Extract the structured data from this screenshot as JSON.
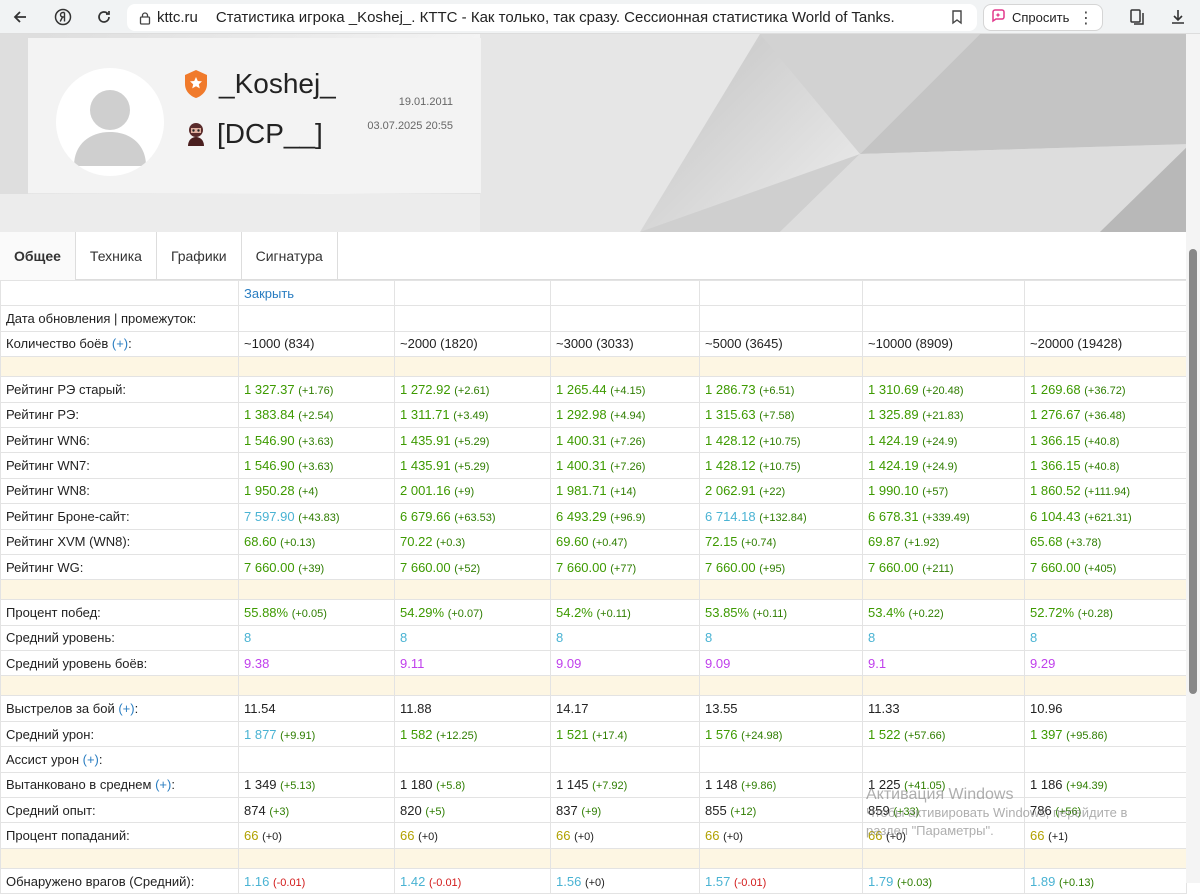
{
  "browser": {
    "domain": "kttc.ru",
    "title": "Статистика игрока _Koshej_. КТТС - Как только, так сразу. Сессионная статистика World of Tanks.",
    "ask_label": "Спросить"
  },
  "profile": {
    "nickname": "_Koshej_",
    "clan": "[DCP__]",
    "date_registered": "19.01.2011",
    "date_updated": "03.07.2025 20:55"
  },
  "tabs": [
    "Общее",
    "Техника",
    "Графики",
    "Сигнатура"
  ],
  "table": {
    "close_label": "Закрыть",
    "update_label": "Дата обновления | промежуток:",
    "battles_label": "Количество боёв",
    "plus": "(+)",
    "battles": [
      "~1000 (834)",
      "~2000 (1820)",
      "~3000 (3033)",
      "~5000 (3645)",
      "~10000 (8909)",
      "~20000 (19428)"
    ],
    "groups": [
      [
        {
          "label": "Рейтинг РЭ старый:",
          "cells": [
            [
              "1 327.37",
              "(+1.76)",
              "g",
              "dg"
            ],
            [
              "1 272.92",
              "(+2.61)",
              "g",
              "dg"
            ],
            [
              "1 265.44",
              "(+4.15)",
              "g",
              "dg"
            ],
            [
              "1 286.73",
              "(+6.51)",
              "g",
              "dg"
            ],
            [
              "1 310.69",
              "(+20.48)",
              "g",
              "dg"
            ],
            [
              "1 269.68",
              "(+36.72)",
              "g",
              "dg"
            ]
          ]
        },
        {
          "label": "Рейтинг РЭ:",
          "cells": [
            [
              "1 383.84",
              "(+2.54)",
              "g",
              "dg"
            ],
            [
              "1 311.71",
              "(+3.49)",
              "g",
              "dg"
            ],
            [
              "1 292.98",
              "(+4.94)",
              "g",
              "dg"
            ],
            [
              "1 315.63",
              "(+7.58)",
              "g",
              "dg"
            ],
            [
              "1 325.89",
              "(+21.83)",
              "g",
              "dg"
            ],
            [
              "1 276.67",
              "(+36.48)",
              "g",
              "dg"
            ]
          ]
        },
        {
          "label": "Рейтинг WN6:",
          "cells": [
            [
              "1 546.90",
              "(+3.63)",
              "g",
              "dg"
            ],
            [
              "1 435.91",
              "(+5.29)",
              "g",
              "dg"
            ],
            [
              "1 400.31",
              "(+7.26)",
              "g",
              "dg"
            ],
            [
              "1 428.12",
              "(+10.75)",
              "g",
              "dg"
            ],
            [
              "1 424.19",
              "(+24.9)",
              "g",
              "dg"
            ],
            [
              "1 366.15",
              "(+40.8)",
              "g",
              "dg"
            ]
          ]
        },
        {
          "label": "Рейтинг WN7:",
          "cells": [
            [
              "1 546.90",
              "(+3.63)",
              "g",
              "dg"
            ],
            [
              "1 435.91",
              "(+5.29)",
              "g",
              "dg"
            ],
            [
              "1 400.31",
              "(+7.26)",
              "g",
              "dg"
            ],
            [
              "1 428.12",
              "(+10.75)",
              "g",
              "dg"
            ],
            [
              "1 424.19",
              "(+24.9)",
              "g",
              "dg"
            ],
            [
              "1 366.15",
              "(+40.8)",
              "g",
              "dg"
            ]
          ]
        },
        {
          "label": "Рейтинг WN8:",
          "cells": [
            [
              "1 950.28",
              "(+4)",
              "g",
              "dg"
            ],
            [
              "2 001.16",
              "(+9)",
              "g",
              "dg"
            ],
            [
              "1 981.71",
              "(+14)",
              "g",
              "dg"
            ],
            [
              "2 062.91",
              "(+22)",
              "g",
              "dg"
            ],
            [
              "1 990.10",
              "(+57)",
              "g",
              "dg"
            ],
            [
              "1 860.52",
              "(+111.94)",
              "g",
              "dg"
            ]
          ]
        },
        {
          "label": "Рейтинг Броне-сайт:",
          "cells": [
            [
              "7 597.90",
              "(+43.83)",
              "b",
              "dg"
            ],
            [
              "6 679.66",
              "(+63.53)",
              "g",
              "dg"
            ],
            [
              "6 493.29",
              "(+96.9)",
              "g",
              "dg"
            ],
            [
              "6 714.18",
              "(+132.84)",
              "b",
              "dg"
            ],
            [
              "6 678.31",
              "(+339.49)",
              "g",
              "dg"
            ],
            [
              "6 104.43",
              "(+621.31)",
              "g",
              "dg"
            ]
          ]
        },
        {
          "label": "Рейтинг XVM (WN8):",
          "cells": [
            [
              "68.60",
              "(+0.13)",
              "g",
              "dg"
            ],
            [
              "70.22",
              "(+0.3)",
              "g",
              "dg"
            ],
            [
              "69.60",
              "(+0.47)",
              "g",
              "dg"
            ],
            [
              "72.15",
              "(+0.74)",
              "g",
              "dg"
            ],
            [
              "69.87",
              "(+1.92)",
              "g",
              "dg"
            ],
            [
              "65.68",
              "(+3.78)",
              "g",
              "dg"
            ]
          ]
        },
        {
          "label": "Рейтинг WG:",
          "cells": [
            [
              "7 660.00",
              "(+39)",
              "g",
              "dg"
            ],
            [
              "7 660.00",
              "(+52)",
              "g",
              "dg"
            ],
            [
              "7 660.00",
              "(+77)",
              "g",
              "dg"
            ],
            [
              "7 660.00",
              "(+95)",
              "g",
              "dg"
            ],
            [
              "7 660.00",
              "(+211)",
              "g",
              "dg"
            ],
            [
              "7 660.00",
              "(+405)",
              "g",
              "dg"
            ]
          ]
        }
      ],
      [
        {
          "label": "Процент побед:",
          "cells": [
            [
              "55.88%",
              "(+0.05)",
              "g",
              "dg"
            ],
            [
              "54.29%",
              "(+0.07)",
              "g",
              "dg"
            ],
            [
              "54.2%",
              "(+0.11)",
              "g",
              "dg"
            ],
            [
              "53.85%",
              "(+0.11)",
              "g",
              "dg"
            ],
            [
              "53.4%",
              "(+0.22)",
              "g",
              "dg"
            ],
            [
              "52.72%",
              "(+0.28)",
              "g",
              "dg"
            ]
          ]
        },
        {
          "label": "Средний уровень:",
          "cells": [
            [
              "8",
              "",
              "b",
              ""
            ],
            [
              "8",
              "",
              "b",
              ""
            ],
            [
              "8",
              "",
              "b",
              ""
            ],
            [
              "8",
              "",
              "b",
              ""
            ],
            [
              "8",
              "",
              "b",
              ""
            ],
            [
              "8",
              "",
              "b",
              ""
            ]
          ]
        },
        {
          "label": "Средний уровень боёв:",
          "cells": [
            [
              "9.38",
              "",
              "p",
              ""
            ],
            [
              "9.11",
              "",
              "p",
              ""
            ],
            [
              "9.09",
              "",
              "p",
              ""
            ],
            [
              "9.09",
              "",
              "p",
              ""
            ],
            [
              "9.1",
              "",
              "p",
              ""
            ],
            [
              "9.29",
              "",
              "p",
              ""
            ]
          ]
        }
      ],
      [
        {
          "label": "Выстрелов за бой",
          "plus": true,
          "cells": [
            [
              "11.54",
              "",
              "v",
              ""
            ],
            [
              "11.88",
              "",
              "v",
              ""
            ],
            [
              "14.17",
              "",
              "v",
              ""
            ],
            [
              "13.55",
              "",
              "v",
              ""
            ],
            [
              "11.33",
              "",
              "v",
              ""
            ],
            [
              "10.96",
              "",
              "v",
              ""
            ]
          ]
        },
        {
          "label": "Средний урон:",
          "cells": [
            [
              "1 877",
              "(+9.91)",
              "b",
              "dg"
            ],
            [
              "1 582",
              "(+12.25)",
              "g",
              "dg"
            ],
            [
              "1 521",
              "(+17.4)",
              "g",
              "dg"
            ],
            [
              "1 576",
              "(+24.98)",
              "g",
              "dg"
            ],
            [
              "1 522",
              "(+57.66)",
              "g",
              "dg"
            ],
            [
              "1 397",
              "(+95.86)",
              "g",
              "dg"
            ]
          ]
        },
        {
          "label": "Ассист урон",
          "plus": true,
          "cells": [
            [
              "",
              "",
              "v",
              ""
            ],
            [
              "",
              "",
              "v",
              ""
            ],
            [
              "",
              "",
              "v",
              ""
            ],
            [
              "",
              "",
              "v",
              ""
            ],
            [
              "",
              "",
              "v",
              ""
            ],
            [
              "",
              "",
              "v",
              ""
            ]
          ]
        },
        {
          "label": "Вытанковано в среднем",
          "plus": true,
          "cells": [
            [
              "1 349",
              "(+5.13)",
              "v",
              "dg"
            ],
            [
              "1 180",
              "(+5.8)",
              "v",
              "dg"
            ],
            [
              "1 145",
              "(+7.92)",
              "v",
              "dg"
            ],
            [
              "1 148",
              "(+9.86)",
              "v",
              "dg"
            ],
            [
              "1 225",
              "(+41.05)",
              "v",
              "dg"
            ],
            [
              "1 186",
              "(+94.39)",
              "v",
              "dg"
            ]
          ]
        },
        {
          "label": "Средний опыт:",
          "cells": [
            [
              "874",
              "(+3)",
              "v",
              "dg"
            ],
            [
              "820",
              "(+5)",
              "v",
              "dg"
            ],
            [
              "837",
              "(+9)",
              "v",
              "dg"
            ],
            [
              "855",
              "(+12)",
              "v",
              "dg"
            ],
            [
              "859",
              "(+33)",
              "v",
              "dg"
            ],
            [
              "786",
              "(+56)",
              "v",
              "dg"
            ]
          ]
        },
        {
          "label": "Процент попаданий:",
          "cells": [
            [
              "66",
              "(+0)",
              "y",
              "dk"
            ],
            [
              "66",
              "(+0)",
              "y",
              "dk"
            ],
            [
              "66",
              "(+0)",
              "y",
              "dk"
            ],
            [
              "66",
              "(+0)",
              "y",
              "dk"
            ],
            [
              "66",
              "(+0)",
              "y",
              "dk"
            ],
            [
              "66",
              "(+1)",
              "y",
              "dk"
            ]
          ]
        }
      ],
      [
        {
          "label": "Обнаружено врагов (Средний):",
          "cells": [
            [
              "1.16",
              "(-0.01)",
              "b",
              "dr"
            ],
            [
              "1.42",
              "(-0.01)",
              "b",
              "dr"
            ],
            [
              "1.56",
              "(+0)",
              "b",
              "dk"
            ],
            [
              "1.57",
              "(-0.01)",
              "b",
              "dr"
            ],
            [
              "1.79",
              "(+0.03)",
              "b",
              "dg"
            ],
            [
              "1.89",
              "(+0.13)",
              "b",
              "dg"
            ]
          ]
        }
      ]
    ]
  },
  "watermark": {
    "title": "Активация Windows",
    "line1": "Чтобы активировать Windows, перейдите в",
    "line2": "раздел \"Параметры\"."
  }
}
